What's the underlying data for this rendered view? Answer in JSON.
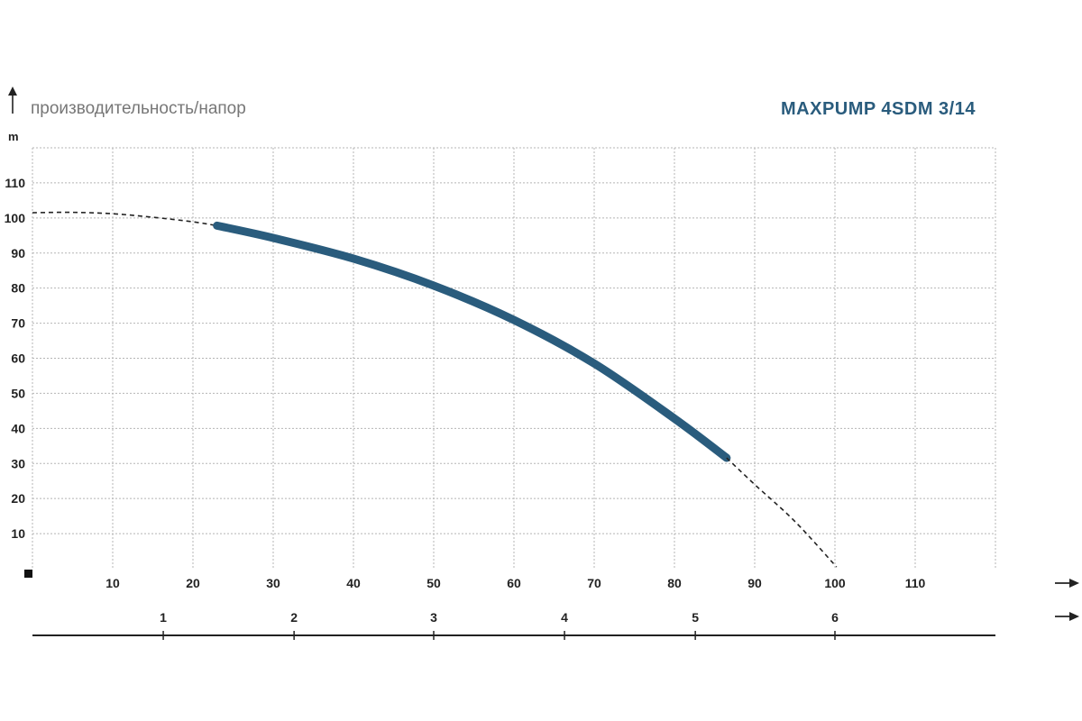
{
  "chart_data": {
    "type": "line",
    "title": "MAXPUMP 4SDM 3/14",
    "ylabel": "производительность/напор",
    "yunit": "m",
    "ylim": [
      0,
      120
    ],
    "y_ticks": [
      10,
      20,
      30,
      40,
      50,
      60,
      70,
      80,
      90,
      100,
      110
    ],
    "x_axis_primary": {
      "xlim": [
        0,
        120
      ],
      "ticks": [
        10,
        20,
        30,
        40,
        50,
        60,
        70,
        80,
        90,
        100,
        110
      ]
    },
    "x_axis_secondary": {
      "ticks": [
        {
          "label": "1",
          "x": 16.3
        },
        {
          "label": "2",
          "x": 32.6
        },
        {
          "label": "3",
          "x": 50.0
        },
        {
          "label": "4",
          "x": 66.3
        },
        {
          "label": "5",
          "x": 82.6
        },
        {
          "label": "6",
          "x": 100.0
        }
      ]
    },
    "grid": true,
    "series": [
      {
        "style": "dashed-extension",
        "color": "#222222",
        "x": [
          0,
          5,
          10,
          15,
          20,
          23
        ],
        "y": [
          101.5,
          101.6,
          101.2,
          100.2,
          98.9,
          97.8
        ]
      },
      {
        "style": "solid-operating-range",
        "color": "#2a5c7d",
        "x": [
          23,
          30,
          40,
          50,
          60,
          70,
          80,
          86.5
        ],
        "y": [
          97.8,
          94.3,
          88.4,
          80.7,
          70.9,
          58.5,
          42.8,
          31.6
        ]
      },
      {
        "style": "dashed-extension",
        "color": "#222222",
        "x": [
          86.5,
          90,
          95,
          100.2
        ],
        "y": [
          31.6,
          24.0,
          13.5,
          0.5
        ]
      }
    ]
  }
}
